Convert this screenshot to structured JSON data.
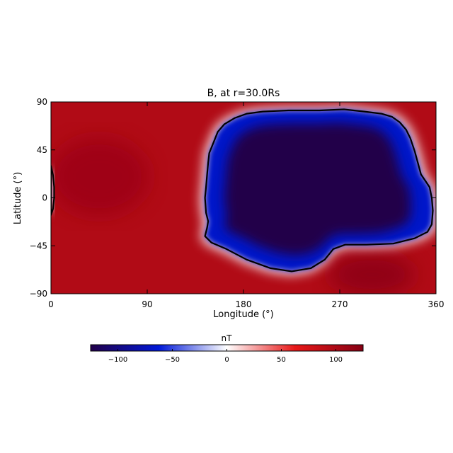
{
  "chart_data": {
    "type": "heatmap",
    "title": "B, at r=30.0Rs",
    "xlabel": "Longitude (°)",
    "ylabel": "Latitude (°)",
    "xlim": [
      0,
      360
    ],
    "ylim": [
      -90,
      90
    ],
    "x_ticks": [
      "0",
      "90",
      "180",
      "270",
      "360"
    ],
    "y_ticks": [
      "90",
      "45",
      "0",
      "−45",
      "−90"
    ],
    "colorbar": {
      "label": "nT",
      "range": [
        -125,
        125
      ],
      "ticks": [
        "−100",
        "−50",
        "0",
        "50",
        "100"
      ],
      "colors": [
        "#22004a",
        "#0018d8",
        "#ffffff",
        "#e81818",
        "#860014"
      ]
    },
    "contour_level": 0,
    "regions": [
      {
        "sign": "negative",
        "peak_value": -125,
        "outline": [
          [
            172,
            75
          ],
          [
            183,
            79
          ],
          [
            198,
            81
          ],
          [
            222,
            82
          ],
          [
            251,
            82
          ],
          [
            274,
            83
          ],
          [
            293,
            81
          ],
          [
            309,
            79
          ],
          [
            319,
            76
          ],
          [
            326,
            71
          ],
          [
            332,
            64
          ],
          [
            336,
            56
          ],
          [
            340,
            44
          ],
          [
            343,
            33
          ],
          [
            346,
            22
          ],
          [
            350,
            16
          ],
          [
            354,
            10
          ],
          [
            356,
            0
          ],
          [
            357,
            -12
          ],
          [
            356,
            -25
          ],
          [
            352,
            -32
          ],
          [
            340,
            -38
          ],
          [
            320,
            -43
          ],
          [
            295,
            -44
          ],
          [
            275,
            -44
          ],
          [
            264,
            -48
          ],
          [
            256,
            -58
          ],
          [
            243,
            -66
          ],
          [
            225,
            -69
          ],
          [
            205,
            -66
          ],
          [
            183,
            -58
          ],
          [
            164,
            -48
          ],
          [
            150,
            -42
          ],
          [
            144,
            -36
          ],
          [
            146,
            -28
          ],
          [
            147,
            -22
          ],
          [
            145,
            -14
          ],
          [
            144,
            0
          ],
          [
            145,
            10
          ],
          [
            146,
            22
          ],
          [
            147,
            33
          ],
          [
            148,
            42
          ],
          [
            152,
            52
          ],
          [
            156,
            62
          ],
          [
            162,
            69
          ],
          [
            172,
            75
          ]
        ]
      },
      {
        "sign": "negative",
        "peak_value": -30,
        "outline": [
          [
            0,
            -16
          ],
          [
            0,
            30
          ],
          [
            2,
            21
          ],
          [
            3,
            10
          ],
          [
            3,
            0
          ],
          [
            2,
            -10
          ],
          [
            0,
            -16
          ]
        ]
      }
    ],
    "positive_peaks": [
      {
        "lon": 45,
        "lat": 20,
        "value": 110
      },
      {
        "lon": 300,
        "lat": -72,
        "value": 120
      }
    ]
  }
}
